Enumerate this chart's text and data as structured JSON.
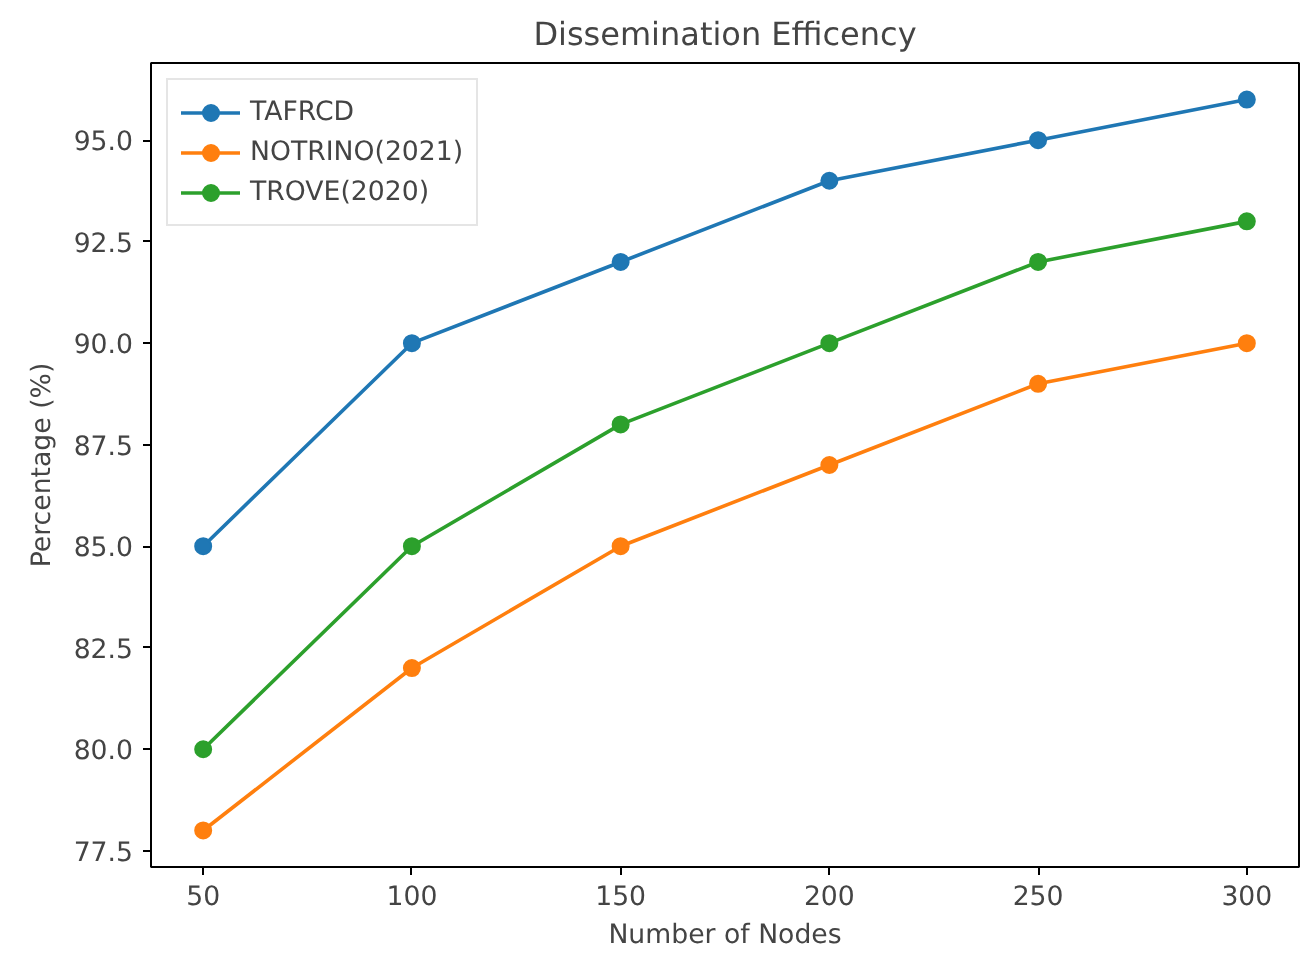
{
  "chart_data": {
    "type": "line",
    "title": "Dissemination Efficency",
    "xlabel": "Number of Nodes",
    "ylabel": "Percentage (%)",
    "x": [
      50,
      100,
      150,
      200,
      250,
      300
    ],
    "series": [
      {
        "name": "TAFRCD",
        "color": "#1f77b4",
        "values": [
          85,
          90,
          92,
          94,
          95,
          96
        ]
      },
      {
        "name": "NOTRINO(2021)",
        "color": "#ff7f0e",
        "values": [
          78,
          82,
          85,
          87,
          89,
          90
        ]
      },
      {
        "name": "TROVE(2020)",
        "color": "#2ca02c",
        "values": [
          80,
          85,
          88,
          90,
          92,
          93
        ]
      }
    ],
    "xlim": [
      37.5,
      312.5
    ],
    "ylim": [
      77.1,
      96.9
    ],
    "xticks": [
      50,
      100,
      150,
      200,
      250,
      300
    ],
    "yticks": [
      {
        "value": 77.5,
        "label": "77.5"
      },
      {
        "value": 80,
        "label": "80.0"
      },
      {
        "value": 82.5,
        "label": "82.5"
      },
      {
        "value": 85,
        "label": "85.0"
      },
      {
        "value": 87.5,
        "label": "87.5"
      },
      {
        "value": 90,
        "label": "90.0"
      },
      {
        "value": 92.5,
        "label": "92.5"
      },
      {
        "value": 95,
        "label": "95.0"
      }
    ],
    "grid": false,
    "legend": "top left",
    "marker": "circle",
    "line_style": "solid"
  }
}
